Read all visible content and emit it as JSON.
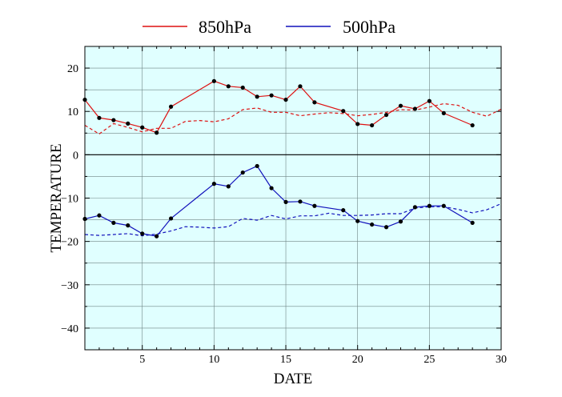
{
  "chart_data": {
    "type": "line",
    "title": "",
    "xlabel": "DATE",
    "ylabel": "TEMPERATURE",
    "xlim": [
      1,
      30
    ],
    "ylim": [
      -45,
      25
    ],
    "x_ticks": [
      5,
      10,
      15,
      20,
      25,
      30
    ],
    "y_ticks": [
      20,
      10,
      0,
      -10,
      -20,
      -30,
      -40
    ],
    "x_tick_labels": [
      "5",
      "10",
      "15",
      "20",
      "25",
      "30"
    ],
    "y_tick_labels": [
      "20",
      "10",
      "0",
      "−10",
      "−20",
      "−30",
      "−40"
    ],
    "grid": true,
    "background": "#e0ffff",
    "legend_position": "top",
    "series": [
      {
        "name": "850hPa",
        "color": "#dd1111",
        "style": "solid",
        "markers": true,
        "x": [
          1,
          2,
          3,
          4,
          5,
          6,
          7,
          10,
          11,
          12,
          13,
          14,
          15,
          16,
          17,
          19,
          20,
          21,
          22,
          23,
          24,
          25,
          26,
          28
        ],
        "y": [
          12.7,
          8.5,
          8.0,
          7.2,
          6.3,
          5.1,
          11.1,
          17.0,
          15.8,
          15.5,
          13.4,
          13.7,
          12.7,
          15.8,
          12.1,
          10.1,
          7.1,
          6.8,
          9.2,
          11.3,
          10.6,
          12.4,
          9.6,
          6.8
        ]
      },
      {
        "name": "500hPa",
        "color": "#1111bb",
        "style": "solid",
        "markers": true,
        "x": [
          1,
          2,
          3,
          4,
          5,
          6,
          7,
          10,
          11,
          12,
          13,
          14,
          15,
          16,
          17,
          19,
          20,
          21,
          22,
          23,
          24,
          25,
          26,
          28
        ],
        "y": [
          -14.8,
          -14.0,
          -15.7,
          -16.3,
          -18.2,
          -18.8,
          -14.7,
          -6.7,
          -7.3,
          -4.1,
          -2.6,
          -7.7,
          -10.9,
          -10.8,
          -11.8,
          -12.8,
          -15.3,
          -16.1,
          -16.7,
          -15.4,
          -12.1,
          -11.8,
          -11.8,
          -15.7
        ]
      },
      {
        "color": "#dd1111",
        "style": "dashed",
        "markers": false,
        "x": [
          1,
          2,
          3,
          4,
          5,
          6,
          7,
          8,
          9,
          10,
          11,
          12,
          13,
          14,
          15,
          16,
          17,
          18,
          19,
          20,
          21,
          22,
          23,
          24,
          25,
          26,
          27,
          28,
          29,
          30
        ],
        "y": [
          6.8,
          4.8,
          7.2,
          6.3,
          5.3,
          6.1,
          6.1,
          7.7,
          7.9,
          7.6,
          8.3,
          10.4,
          10.8,
          9.8,
          9.8,
          9.0,
          9.4,
          9.7,
          9.5,
          9.0,
          9.3,
          9.8,
          10.4,
          10.3,
          11.0,
          11.8,
          11.4,
          9.8,
          8.9,
          10.5
        ]
      },
      {
        "color": "#1111bb",
        "style": "dashed",
        "markers": false,
        "x": [
          1,
          2,
          3,
          4,
          5,
          6,
          7,
          8,
          9,
          10,
          11,
          12,
          13,
          14,
          15,
          16,
          17,
          18,
          19,
          20,
          21,
          22,
          23,
          24,
          25,
          26,
          27,
          28,
          29,
          30
        ],
        "y": [
          -18.4,
          -18.6,
          -18.4,
          -18.2,
          -18.7,
          -18.3,
          -17.6,
          -16.6,
          -16.7,
          -16.9,
          -16.6,
          -14.7,
          -15.1,
          -14.0,
          -14.8,
          -14.1,
          -14.1,
          -13.5,
          -14.0,
          -14.0,
          -13.9,
          -13.6,
          -13.6,
          -12.3,
          -12.0,
          -12.0,
          -12.6,
          -13.4,
          -12.7,
          -11.3
        ]
      }
    ]
  }
}
